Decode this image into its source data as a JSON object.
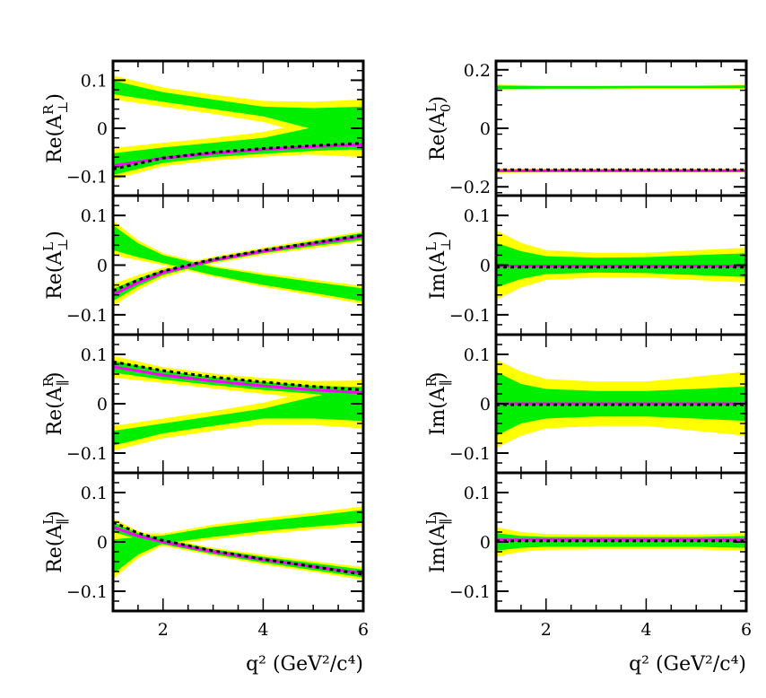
{
  "chart_data": {
    "type": "area",
    "x_axis": {
      "label": "q² (GeV²/c⁴)",
      "range": [
        1,
        6
      ],
      "ticks": [
        2,
        4,
        6
      ],
      "tick_labels": [
        "2",
        "4",
        "6"
      ]
    },
    "legend": null,
    "colors": {
      "band_outer": "#ffff00",
      "band_inner": "#00ee00",
      "fit_line": "#ff00ff",
      "reference_line": "#000000"
    },
    "panels": [
      {
        "id": "re-aperp-r",
        "ylabel": "Re(A⊥R)",
        "ylabel_base": "Re(A",
        "sub": "⊥",
        "sup": "R",
        "ylim": [
          -0.14,
          0.14
        ],
        "yticks": [
          -0.1,
          0,
          0.1
        ],
        "ytick_labels": [
          "−0.1",
          "0",
          "0.1"
        ],
        "show_xticklabels": false,
        "bands": [
          {
            "x": [
              1,
              2,
              3,
              4,
              5,
              6
            ],
            "center": [
              -0.085,
              -0.063,
              -0.052,
              -0.045,
              -0.04,
              -0.036
            ],
            "inner_half": [
              0.012,
              0.009,
              0.008,
              0.008,
              0.007,
              0.007
            ],
            "outer_half": [
              0.022,
              0.016,
              0.015,
              0.014,
              0.014,
              0.014
            ]
          },
          {
            "x": [
              1,
              2,
              3,
              4,
              5,
              6
            ],
            "center": [
              0.085,
              0.065,
              0.05,
              0.035,
              0.02,
              0.01
            ],
            "inner_half": [
              0.014,
              0.01,
              0.01,
              0.01,
              0.022,
              0.035
            ],
            "outer_half": [
              0.025,
              0.02,
              0.02,
              0.022,
              0.035,
              0.05
            ]
          },
          {
            "x": [
              1,
              2,
              3,
              4,
              5,
              6
            ],
            "center": [
              -0.066,
              -0.05,
              -0.04,
              -0.03,
              -0.02,
              -0.01
            ],
            "inner_half": [
              0.014,
              0.01,
              0.01,
              0.01,
              0.022,
              0.035
            ],
            "outer_half": [
              0.025,
              0.02,
              0.02,
              0.022,
              0.035,
              0.05
            ]
          }
        ],
        "fit_line": {
          "x": [
            1,
            2,
            3,
            4,
            5,
            6
          ],
          "y": [
            -0.078,
            -0.062,
            -0.052,
            -0.044,
            -0.038,
            -0.034
          ]
        },
        "reference_line": {
          "x": [
            1,
            2,
            3,
            4,
            5,
            6
          ],
          "y": [
            -0.085,
            -0.062,
            -0.05,
            -0.042,
            -0.036,
            -0.031
          ]
        }
      },
      {
        "id": "re-a0-l",
        "ylabel": "Re(A0L)",
        "ylabel_base": "Re(A",
        "sub": "0",
        "sup": "L",
        "ylim": [
          -0.23,
          0.23
        ],
        "yticks": [
          -0.2,
          0,
          0.2
        ],
        "ytick_labels": [
          "−0.2",
          "0",
          "0.2"
        ],
        "show_xticklabels": false,
        "bands": [
          {
            "x": [
              1,
              2,
              3,
              4,
              5,
              6
            ],
            "center": [
              0.14,
              0.14,
              0.14,
              0.141,
              0.141,
              0.142
            ],
            "inner_half": [
              0.006,
              0.004,
              0.004,
              0.004,
              0.004,
              0.005
            ],
            "outer_half": [
              0.01,
              0.006,
              0.006,
              0.006,
              0.006,
              0.007
            ]
          },
          {
            "x": [
              1,
              2,
              3,
              4,
              5,
              6
            ],
            "center": [
              -0.145,
              -0.145,
              -0.145,
              -0.145,
              -0.145,
              -0.145
            ],
            "inner_half": [
              0.005,
              0.004,
              0.004,
              0.004,
              0.004,
              0.004
            ],
            "outer_half": [
              0.008,
              0.006,
              0.006,
              0.006,
              0.006,
              0.006
            ]
          }
        ],
        "fit_line": {
          "x": [
            1,
            2,
            3,
            4,
            5,
            6
          ],
          "y": [
            -0.145,
            -0.145,
            -0.145,
            -0.145,
            -0.145,
            -0.145
          ]
        },
        "reference_line": {
          "x": [
            1,
            2,
            3,
            4,
            5,
            6
          ],
          "y": [
            -0.142,
            -0.142,
            -0.142,
            -0.142,
            -0.142,
            -0.142
          ]
        }
      },
      {
        "id": "re-aperp-l",
        "ylabel": "Re(A⊥L)",
        "ylabel_base": "Re(A",
        "sub": "⊥",
        "sup": "L",
        "ylim": [
          -0.14,
          0.14
        ],
        "yticks": [
          -0.1,
          0,
          0.1
        ],
        "ytick_labels": [
          "−0.1",
          "0",
          "0.1"
        ],
        "show_xticklabels": false,
        "bands": [
          {
            "x": [
              1,
              1.5,
              2,
              3,
              4,
              5,
              6
            ],
            "center": [
              -0.06,
              -0.035,
              -0.015,
              0.01,
              0.028,
              0.043,
              0.058
            ],
            "inner_half": [
              0.012,
              0.008,
              0.005,
              0.004,
              0.004,
              0.005,
              0.007
            ],
            "outer_half": [
              0.022,
              0.015,
              0.01,
              0.007,
              0.007,
              0.009,
              0.01
            ]
          },
          {
            "x": [
              1,
              1.5,
              2,
              3,
              4,
              5,
              6
            ],
            "center": [
              0.055,
              0.03,
              0.012,
              -0.012,
              -0.03,
              -0.045,
              -0.06
            ],
            "inner_half": [
              0.025,
              0.014,
              0.008,
              0.008,
              0.01,
              0.011,
              0.013
            ],
            "outer_half": [
              0.035,
              0.02,
              0.012,
              0.011,
              0.014,
              0.016,
              0.018
            ]
          }
        ],
        "fit_line": {
          "x": [
            1,
            1.5,
            2,
            3,
            4,
            5,
            6
          ],
          "y": [
            -0.06,
            -0.035,
            -0.015,
            0.01,
            0.028,
            0.043,
            0.058
          ]
        },
        "reference_line": {
          "x": [
            1,
            1.5,
            2,
            3,
            4,
            5,
            6
          ],
          "y": [
            -0.052,
            -0.03,
            -0.012,
            0.012,
            0.03,
            0.045,
            0.06
          ]
        }
      },
      {
        "id": "im-aperp-l",
        "ylabel": "Im(A⊥L)",
        "ylabel_base": "Im(A",
        "sub": "⊥",
        "sup": "L",
        "ylim": [
          -0.14,
          0.14
        ],
        "yticks": [
          -0.1,
          0,
          0.1
        ],
        "ytick_labels": [
          "−0.1",
          "0",
          "0.1"
        ],
        "show_xticklabels": false,
        "bands": [
          {
            "x": [
              1,
              1.5,
              2,
              3,
              4,
              5,
              6
            ],
            "center": [
              0,
              0,
              0,
              0,
              0,
              0,
              0
            ],
            "inner_half": [
              0.045,
              0.028,
              0.018,
              0.015,
              0.016,
              0.02,
              0.024
            ],
            "outer_half": [
              0.07,
              0.045,
              0.03,
              0.025,
              0.025,
              0.03,
              0.035
            ]
          }
        ],
        "fit_line": {
          "x": [
            1,
            6
          ],
          "y": [
            -0.002,
            -0.002
          ]
        },
        "reference_line": {
          "x": [
            1,
            6
          ],
          "y": [
            -0.004,
            -0.004
          ]
        }
      },
      {
        "id": "re-apar-r",
        "ylabel": "Re(A∥R)",
        "ylabel_base": "Re(A",
        "sub": "∥",
        "sup": "R",
        "ylim": [
          -0.14,
          0.14
        ],
        "yticks": [
          -0.1,
          0,
          0.1
        ],
        "ytick_labels": [
          "−0.1",
          "0",
          "0.1"
        ],
        "show_xticklabels": false,
        "bands": [
          {
            "x": [
              1,
              2,
              3,
              4,
              5,
              6
            ],
            "center": [
              0.075,
              0.058,
              0.046,
              0.036,
              0.028,
              0.022
            ],
            "inner_half": [
              0.012,
              0.009,
              0.008,
              0.008,
              0.008,
              0.012
            ],
            "outer_half": [
              0.022,
              0.016,
              0.015,
              0.016,
              0.018,
              0.025
            ]
          },
          {
            "x": [
              1,
              2,
              3,
              4,
              5,
              6
            ],
            "center": [
              -0.07,
              -0.05,
              -0.035,
              -0.02,
              -0.008,
              0.0
            ],
            "inner_half": [
              0.015,
              0.01,
              0.01,
              0.01,
              0.022,
              0.035
            ],
            "outer_half": [
              0.025,
              0.02,
              0.02,
              0.022,
              0.035,
              0.05
            ]
          }
        ],
        "fit_line": {
          "x": [
            1,
            2,
            3,
            4,
            5,
            6
          ],
          "y": [
            0.075,
            0.058,
            0.046,
            0.036,
            0.028,
            0.022
          ]
        },
        "reference_line": {
          "x": [
            1,
            2,
            3,
            4,
            5,
            6
          ],
          "y": [
            0.085,
            0.067,
            0.054,
            0.044,
            0.035,
            0.028
          ]
        }
      },
      {
        "id": "im-apar-r",
        "ylabel": "Im(A∥R)",
        "ylabel_base": "Im(A",
        "sub": "∥",
        "sup": "R",
        "ylim": [
          -0.14,
          0.14
        ],
        "yticks": [
          -0.1,
          0,
          0.1
        ],
        "ytick_labels": [
          "−0.1",
          "0",
          "0.1"
        ],
        "show_xticklabels": false,
        "bands": [
          {
            "x": [
              1,
              1.5,
              2,
              3,
              4,
              5,
              6
            ],
            "center": [
              0,
              0,
              0,
              0,
              0,
              0,
              0
            ],
            "inner_half": [
              0.065,
              0.04,
              0.03,
              0.026,
              0.026,
              0.03,
              0.035
            ],
            "outer_half": [
              0.09,
              0.065,
              0.05,
              0.045,
              0.045,
              0.055,
              0.065
            ]
          }
        ],
        "fit_line": {
          "x": [
            1,
            6
          ],
          "y": [
            0,
            0
          ]
        },
        "reference_line": {
          "x": [
            1,
            6
          ],
          "y": [
            -0.002,
            -0.002
          ]
        }
      },
      {
        "id": "re-apar-l",
        "ylabel": "Re(A∥L)",
        "ylabel_base": "Re(A",
        "sub": "∥",
        "sup": "L",
        "ylim": [
          -0.14,
          0.14
        ],
        "yticks": [
          -0.1,
          0,
          0.1
        ],
        "ytick_labels": [
          "−0.1",
          "0",
          "0.1"
        ],
        "show_xticklabels": true,
        "bands": [
          {
            "x": [
              1,
              1.5,
              2,
              3,
              4,
              5,
              6
            ],
            "center": [
              0.03,
              0.012,
              0.0,
              -0.02,
              -0.036,
              -0.05,
              -0.064
            ],
            "inner_half": [
              0.01,
              0.006,
              0.005,
              0.005,
              0.006,
              0.007,
              0.008
            ],
            "outer_half": [
              0.018,
              0.01,
              0.008,
              0.008,
              0.01,
              0.011,
              0.013
            ]
          },
          {
            "x": [
              1,
              1.5,
              2,
              3,
              4,
              5,
              6
            ],
            "center": [
              -0.03,
              -0.008,
              0.005,
              0.02,
              0.032,
              0.042,
              0.052
            ],
            "inner_half": [
              0.035,
              0.018,
              0.008,
              0.01,
              0.01,
              0.011,
              0.013
            ],
            "outer_half": [
              0.045,
              0.025,
              0.012,
              0.015,
              0.016,
              0.017,
              0.02
            ]
          }
        ],
        "fit_line": {
          "x": [
            1,
            1.5,
            2,
            3,
            4,
            5,
            6
          ],
          "y": [
            0.03,
            0.012,
            0.0,
            -0.02,
            -0.036,
            -0.05,
            -0.064
          ]
        },
        "reference_line": {
          "x": [
            1,
            1.5,
            2,
            3,
            4,
            5,
            6
          ],
          "y": [
            0.04,
            0.018,
            0.003,
            -0.018,
            -0.035,
            -0.05,
            -0.066
          ]
        }
      },
      {
        "id": "im-apar-l",
        "ylabel": "Im(A∥L)",
        "ylabel_base": "Im(A",
        "sub": "∥",
        "sup": "L",
        "ylim": [
          -0.14,
          0.14
        ],
        "yticks": [
          -0.1,
          0,
          0.1
        ],
        "ytick_labels": [
          "−0.1",
          "0",
          "0.1"
        ],
        "show_xticklabels": true,
        "bands": [
          {
            "x": [
              1,
              1.5,
              2,
              3,
              4,
              5,
              6
            ],
            "center": [
              0,
              0,
              0,
              0,
              0,
              0,
              0
            ],
            "inner_half": [
              0.018,
              0.012,
              0.01,
              0.01,
              0.01,
              0.01,
              0.012
            ],
            "outer_half": [
              0.03,
              0.02,
              0.016,
              0.015,
              0.015,
              0.015,
              0.018
            ]
          }
        ],
        "fit_line": {
          "x": [
            1,
            6
          ],
          "y": [
            0.004,
            0.004
          ]
        },
        "reference_line": {
          "x": [
            1,
            6
          ],
          "y": [
            0.002,
            0.002
          ]
        }
      }
    ]
  }
}
